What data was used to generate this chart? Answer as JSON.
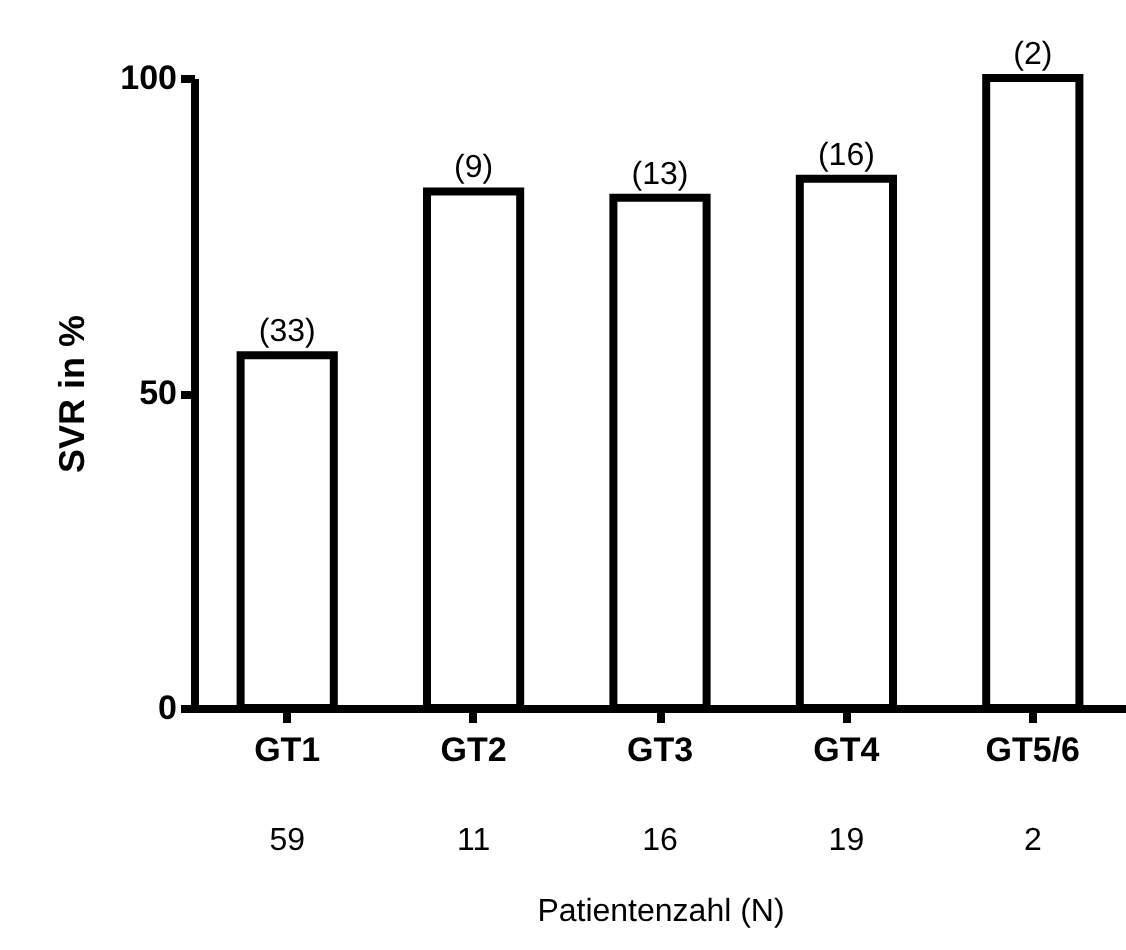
{
  "chart_data": {
    "type": "bar",
    "categories": [
      "GT1",
      "GT2",
      "GT3",
      "GT4",
      "GT5/6"
    ],
    "values": [
      56,
      82,
      81,
      84,
      100
    ],
    "color": "#ffffff",
    "ylabel": "SVR in %",
    "xlabel": "Patientenzahl (N)",
    "annotations": [
      {
        "text": "(33)",
        "x": "GT1",
        "y": 56
      },
      {
        "text": "(9)",
        "x": "GT2",
        "y": 82
      },
      {
        "text": "(13)",
        "x": "GT3",
        "y": 81
      },
      {
        "text": "(16)",
        "x": "GT4",
        "y": 84
      },
      {
        "text": "(2)",
        "x": "GT5/6",
        "y": 100
      },
      "59",
      "11",
      "16",
      "19",
      "2"
    ],
    "ylim": [
      0,
      100
    ],
    "yticks": [
      0,
      50,
      100
    ],
    "grid": false
  }
}
